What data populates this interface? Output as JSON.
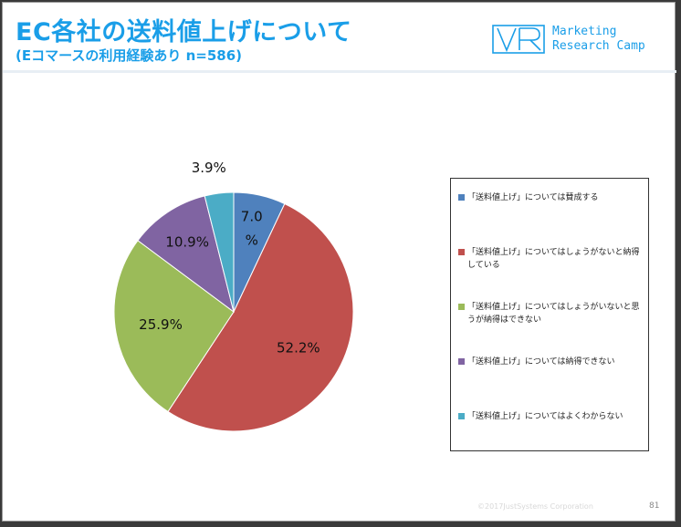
{
  "header": {
    "title": "EC各社の送料値上げについて",
    "subtitle": "(Eコマースの利用経験あり n=586)"
  },
  "logo": {
    "line1": "Marketing",
    "line2": "Research Camp",
    "color": "#1a9ee8"
  },
  "footer": {
    "copyright": "©2017JustSystems Corporation",
    "page_number": "81"
  },
  "chart_data": {
    "type": "pie",
    "categories": [
      "「送料値上げ」については賛成する",
      "「送料値上げ」についてはしょうがないと納得している",
      "「送料値上げ」についてはしょうがいないと思うが納得はできない",
      "「送料値上げ」については納得できない",
      "「送料値上げ」についてはよくわからない"
    ],
    "values": [
      7.0,
      52.2,
      25.9,
      10.9,
      3.9
    ],
    "labels": [
      "7.0%",
      "52.2%",
      "25.9%",
      "10.9%",
      "3.9%"
    ],
    "colors": [
      "#4f81bd",
      "#c0504d",
      "#9bbb59",
      "#8064a2",
      "#4bacc6"
    ],
    "legend_position": "right"
  }
}
